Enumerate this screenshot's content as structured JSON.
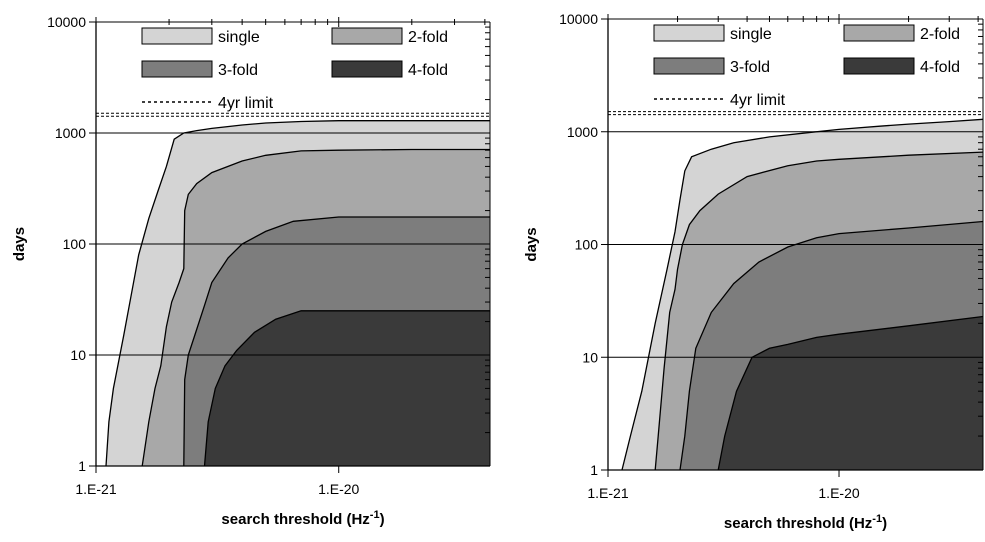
{
  "chart_data": [
    {
      "type": "area",
      "xlabel": "search threshold (Hz",
      "xlabel_sup": "-1",
      "xlabel_close": ")",
      "ylabel": "days",
      "x_scale": "log",
      "y_scale": "log",
      "xlim": [
        1e-21,
        4.2e-20
      ],
      "ylim": [
        1,
        10000
      ],
      "x_ticks": [
        {
          "value": 1e-21,
          "label": "1.E-21"
        },
        {
          "value": 1e-20,
          "label": "1.E-20"
        }
      ],
      "y_ticks": [
        {
          "value": 1,
          "label": "1"
        },
        {
          "value": 10,
          "label": "10"
        },
        {
          "value": 100,
          "label": "100"
        },
        {
          "value": 1000,
          "label": "1000"
        },
        {
          "value": 10000,
          "label": "10000"
        }
      ],
      "limit_line": {
        "name": "4yr limit",
        "value": 1461
      },
      "series": [
        {
          "name": "single",
          "color": "#d4d4d4",
          "points": [
            [
              1.1e-21,
              1
            ],
            [
              1.13e-21,
              2.5
            ],
            [
              1.18e-21,
              5
            ],
            [
              1.3e-21,
              15
            ],
            [
              1.5e-21,
              80
            ],
            [
              1.65e-21,
              170
            ],
            [
              1.8e-21,
              300
            ],
            [
              1.95e-21,
              500
            ],
            [
              2.1e-21,
              880
            ],
            [
              2.3e-21,
              1000
            ],
            [
              2.6e-21,
              1050
            ],
            [
              3e-21,
              1100
            ],
            [
              4e-21,
              1180
            ],
            [
              5e-21,
              1230
            ],
            [
              7e-21,
              1270
            ],
            [
              1e-20,
              1290
            ],
            [
              2e-20,
              1290
            ],
            [
              4.2e-20,
              1290
            ]
          ]
        },
        {
          "name": "2-fold",
          "color": "#a8a8a8",
          "points": [
            [
              1.55e-21,
              1
            ],
            [
              1.65e-21,
              2.5
            ],
            [
              1.75e-21,
              5
            ],
            [
              1.85e-21,
              8
            ],
            [
              1.95e-21,
              18
            ],
            [
              2.05e-21,
              30
            ],
            [
              2.2e-21,
              45
            ],
            [
              2.3e-21,
              60
            ],
            [
              2.32e-21,
              200
            ],
            [
              2.4e-21,
              280
            ],
            [
              2.6e-21,
              350
            ],
            [
              3e-21,
              440
            ],
            [
              4e-21,
              560
            ],
            [
              5e-21,
              630
            ],
            [
              7e-21,
              690
            ],
            [
              1e-20,
              700
            ],
            [
              2e-20,
              710
            ],
            [
              4.2e-20,
              710
            ]
          ]
        },
        {
          "name": "3-fold",
          "color": "#7d7d7d",
          "points": [
            [
              2.3e-21,
              1
            ],
            [
              2.32e-21,
              6
            ],
            [
              2.4e-21,
              10
            ],
            [
              2.55e-21,
              15
            ],
            [
              2.8e-21,
              28
            ],
            [
              3e-21,
              45
            ],
            [
              3.5e-21,
              75
            ],
            [
              4e-21,
              100
            ],
            [
              5e-21,
              130
            ],
            [
              6.5e-21,
              160
            ],
            [
              1e-20,
              175
            ],
            [
              2e-20,
              175
            ],
            [
              4.2e-20,
              175
            ]
          ]
        },
        {
          "name": "4-fold",
          "color": "#3a3a3a",
          "points": [
            [
              2.8e-21,
              1
            ],
            [
              2.9e-21,
              2.5
            ],
            [
              3.1e-21,
              5
            ],
            [
              3.4e-21,
              8
            ],
            [
              3.8e-21,
              11
            ],
            [
              4.5e-21,
              16
            ],
            [
              5.5e-21,
              21
            ],
            [
              7e-21,
              25
            ],
            [
              1e-20,
              25
            ],
            [
              2e-20,
              25
            ],
            [
              4.2e-20,
              25
            ]
          ]
        }
      ]
    },
    {
      "type": "area",
      "xlabel": "search threshold (Hz",
      "xlabel_sup": "-1",
      "xlabel_close": ")",
      "ylabel": "days",
      "x_scale": "log",
      "y_scale": "log",
      "xlim": [
        1e-21,
        4.2e-20
      ],
      "ylim": [
        1,
        10000
      ],
      "x_ticks": [
        {
          "value": 1e-21,
          "label": "1.E-21"
        },
        {
          "value": 1e-20,
          "label": "1.E-20"
        }
      ],
      "y_ticks": [
        {
          "value": 1,
          "label": "1"
        },
        {
          "value": 10,
          "label": "10"
        },
        {
          "value": 100,
          "label": "100"
        },
        {
          "value": 1000,
          "label": "1000"
        },
        {
          "value": 10000,
          "label": "10000"
        }
      ],
      "limit_line": {
        "name": "4yr limit",
        "value": 1461
      },
      "series": [
        {
          "name": "single",
          "color": "#d4d4d4",
          "points": [
            [
              1.15e-21,
              1
            ],
            [
              1.25e-21,
              2
            ],
            [
              1.4e-21,
              5
            ],
            [
              1.6e-21,
              20
            ],
            [
              1.8e-21,
              60
            ],
            [
              1.95e-21,
              130
            ],
            [
              2.05e-21,
              250
            ],
            [
              2.15e-21,
              450
            ],
            [
              2.3e-21,
              600
            ],
            [
              2.8e-21,
              700
            ],
            [
              3.5e-21,
              800
            ],
            [
              5e-21,
              900
            ],
            [
              7e-21,
              970
            ],
            [
              1e-20,
              1050
            ],
            [
              1.5e-20,
              1120
            ],
            [
              2e-20,
              1170
            ],
            [
              3e-20,
              1230
            ],
            [
              4.2e-20,
              1290
            ]
          ]
        },
        {
          "name": "2-fold",
          "color": "#a8a8a8",
          "points": [
            [
              1.6e-21,
              1
            ],
            [
              1.65e-21,
              2
            ],
            [
              1.75e-21,
              8
            ],
            [
              1.85e-21,
              25
            ],
            [
              1.95e-21,
              40
            ],
            [
              2e-21,
              60
            ],
            [
              2.1e-21,
              100
            ],
            [
              2.25e-21,
              150
            ],
            [
              2.5e-21,
              200
            ],
            [
              3e-21,
              280
            ],
            [
              4e-21,
              400
            ],
            [
              6e-21,
              500
            ],
            [
              8e-21,
              550
            ],
            [
              1e-20,
              570
            ],
            [
              2e-20,
              620
            ],
            [
              4.2e-20,
              660
            ]
          ]
        },
        {
          "name": "3-fold",
          "color": "#7d7d7d",
          "points": [
            [
              2.05e-21,
              1
            ],
            [
              2.15e-21,
              2
            ],
            [
              2.25e-21,
              5
            ],
            [
              2.4e-21,
              12
            ],
            [
              2.8e-21,
              25
            ],
            [
              3.5e-21,
              45
            ],
            [
              4.5e-21,
              70
            ],
            [
              6e-21,
              95
            ],
            [
              8e-21,
              115
            ],
            [
              1e-20,
              125
            ],
            [
              2e-20,
              140
            ],
            [
              4.2e-20,
              160
            ]
          ]
        },
        {
          "name": "4-fold",
          "color": "#3a3a3a",
          "points": [
            [
              3e-21,
              1
            ],
            [
              3.2e-21,
              2
            ],
            [
              3.6e-21,
              5
            ],
            [
              4.2e-21,
              10
            ],
            [
              5e-21,
              12
            ],
            [
              6e-21,
              13
            ],
            [
              8e-21,
              15
            ],
            [
              1e-20,
              16
            ],
            [
              2e-20,
              19
            ],
            [
              4.2e-20,
              23
            ]
          ]
        }
      ]
    }
  ]
}
